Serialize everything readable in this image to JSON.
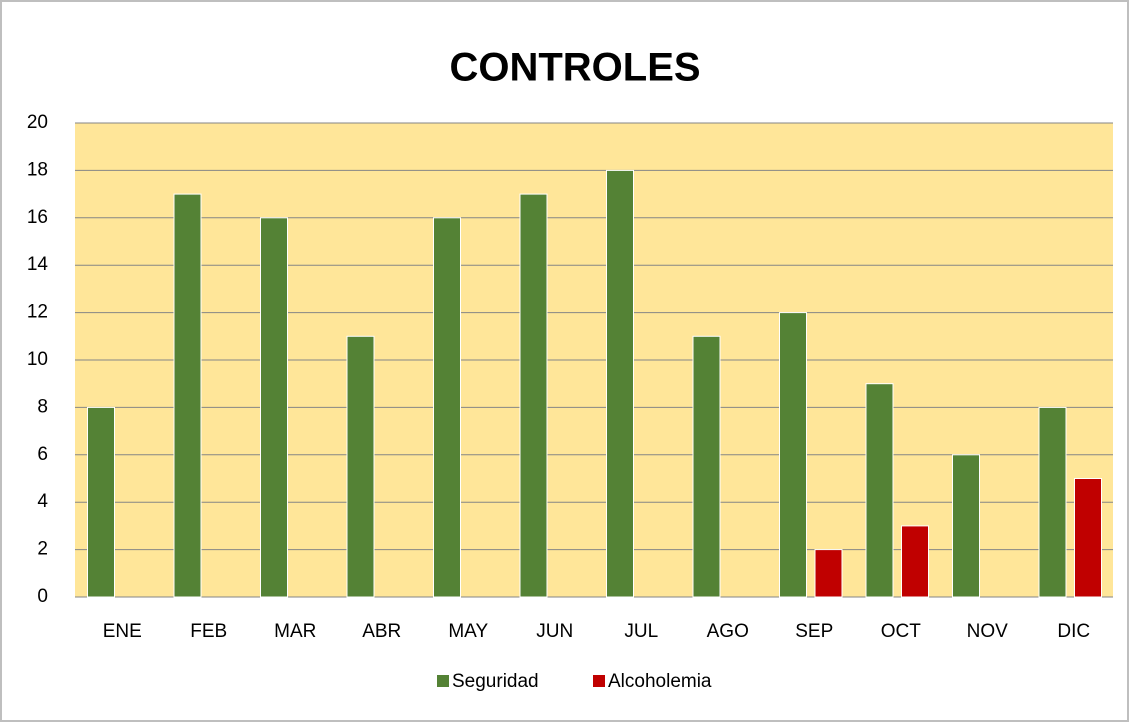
{
  "chart_data": {
    "type": "bar",
    "title": "CONTROLES",
    "categories": [
      "ENE",
      "FEB",
      "MAR",
      "ABR",
      "MAY",
      "JUN",
      "JUL",
      "AGO",
      "SEP",
      "OCT",
      "NOV",
      "DIC"
    ],
    "series": [
      {
        "name": "Seguridad",
        "color": "#548235",
        "values": [
          8,
          17,
          16,
          11,
          16,
          17,
          18,
          11,
          12,
          9,
          6,
          8
        ]
      },
      {
        "name": "Alcoholemia",
        "color": "#c00000",
        "values": [
          0,
          0,
          0,
          0,
          0,
          0,
          0,
          0,
          2,
          3,
          0,
          5
        ]
      }
    ],
    "ylim": [
      0,
      20
    ],
    "yticks": [
      0,
      2,
      4,
      6,
      8,
      10,
      12,
      14,
      16,
      18,
      20
    ],
    "grid": true,
    "legend": "bottom",
    "plot_background": "#ffe699"
  }
}
